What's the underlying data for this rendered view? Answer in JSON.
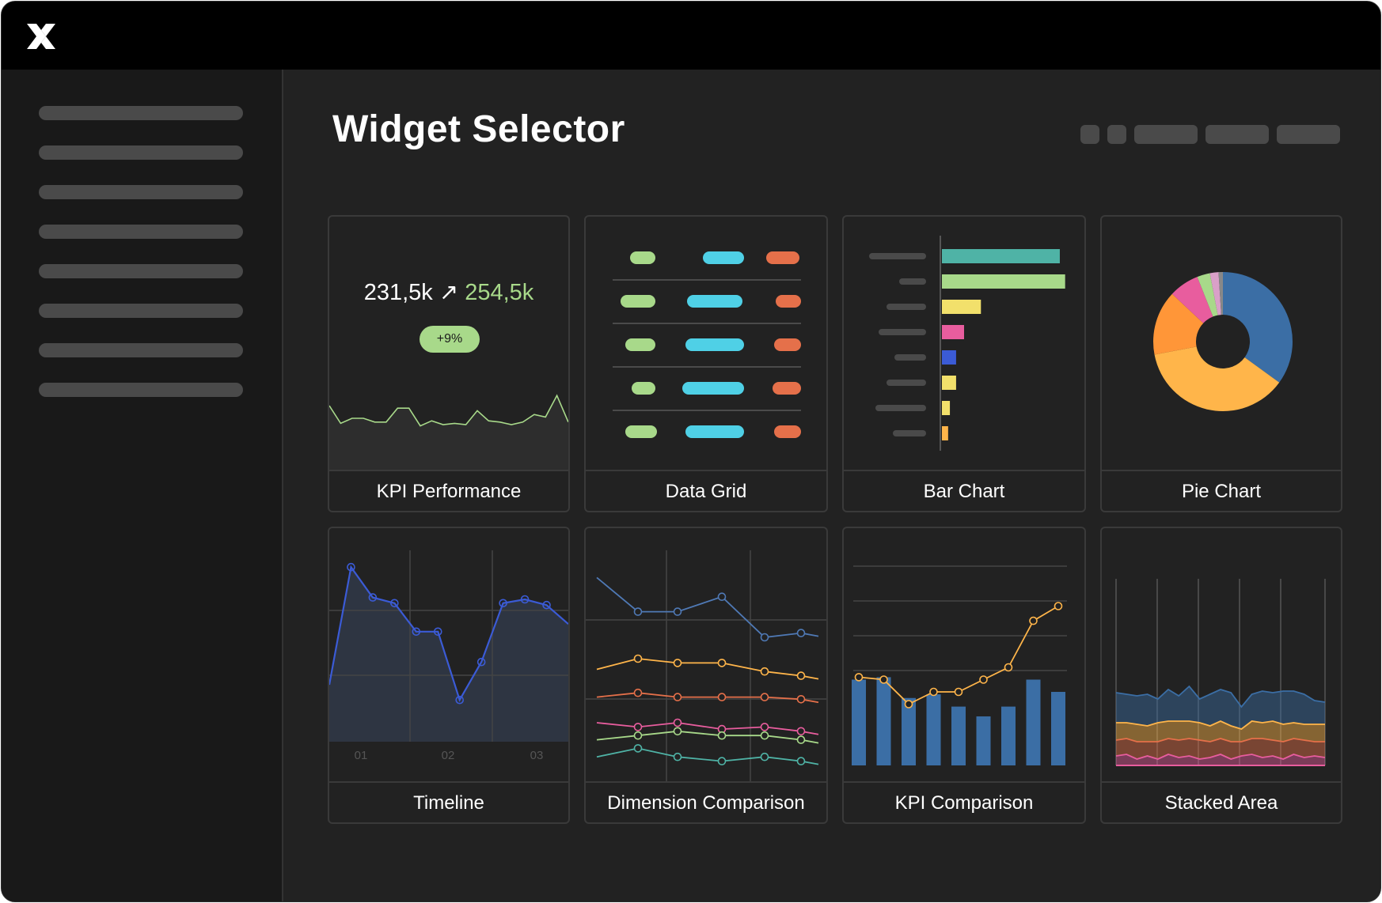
{
  "app": {
    "logo_name": "x-logo-icon"
  },
  "header": {
    "title": "Widget Selector"
  },
  "sidebar": {
    "item_count": 8
  },
  "widgets": {
    "kpi_performance": {
      "label": "KPI Performance",
      "value_from": "231,5k",
      "arrow": "↗",
      "value_to": "254,5k",
      "badge": "+9%"
    },
    "data_grid": {
      "label": "Data Grid"
    },
    "bar_chart": {
      "label": "Bar Chart"
    },
    "pie_chart": {
      "label": "Pie Chart"
    },
    "timeline": {
      "label": "Timeline",
      "ticks": [
        "01",
        "02",
        "03"
      ]
    },
    "dimension_comparison": {
      "label": "Dimension Comparison"
    },
    "kpi_comparison": {
      "label": "KPI Comparison"
    },
    "stacked_area": {
      "label": "Stacked Area"
    }
  },
  "colors": {
    "green": "#a8d98a",
    "cyan": "#4fd0e6",
    "orange": "#e5704a",
    "blue": "#3b5bd6",
    "steel_blue": "#3b6ea5",
    "amber": "#ffb54a",
    "yellow": "#f2e06b",
    "pink": "#e85d9e",
    "teal": "#4fb3a6"
  },
  "chart_data": [
    {
      "type": "line",
      "widget": "kpi_performance",
      "values": [
        60,
        46,
        50,
        50,
        47,
        47,
        58,
        58,
        44,
        48,
        45,
        46,
        45,
        56,
        48,
        47,
        45,
        47,
        53,
        51,
        68,
        47
      ]
    },
    {
      "type": "bar",
      "widget": "bar_chart",
      "orientation": "horizontal",
      "values": [
        133,
        139,
        44,
        25,
        16,
        16,
        9,
        7
      ],
      "colors": [
        "#4fb3a6",
        "#a8d98a",
        "#f2e06b",
        "#e85d9e",
        "#3b5bd6",
        "#f2e06b",
        "#f2e06b",
        "#ffb54a"
      ]
    },
    {
      "type": "pie",
      "widget": "pie_chart",
      "values": [
        35,
        37,
        15,
        7,
        3,
        2,
        1
      ],
      "colors": [
        "#3b6ea5",
        "#ffb54a",
        "#ff9638",
        "#e85d9e",
        "#a8d98a",
        "#d9a0c8",
        "#888888"
      ]
    },
    {
      "type": "area",
      "widget": "timeline",
      "values": [
        30,
        92,
        76,
        73,
        58,
        58,
        22,
        42,
        73,
        75,
        72,
        62
      ],
      "ylim": [
        0,
        100
      ]
    },
    {
      "type": "line",
      "widget": "dimension_comparison",
      "x": [
        0,
        1,
        2,
        3,
        4,
        5
      ],
      "series": [
        {
          "values": [
            88,
            72,
            72,
            79,
            60,
            62
          ],
          "color": "#4f79b5"
        },
        {
          "values": [
            45,
            50,
            48,
            48,
            44,
            42
          ],
          "color": "#ffb54a"
        },
        {
          "values": [
            32,
            34,
            32,
            32,
            32,
            31
          ],
          "color": "#e5704a"
        },
        {
          "values": [
            20,
            18,
            20,
            17,
            18,
            16
          ],
          "color": "#e85d9e"
        },
        {
          "values": [
            12,
            14,
            16,
            14,
            14,
            12
          ],
          "color": "#a8d98a"
        },
        {
          "values": [
            4,
            8,
            4,
            2,
            4,
            2
          ],
          "color": "#4fb3a6"
        }
      ]
    },
    {
      "type": "bar",
      "widget": "kpi_comparison",
      "values": [
        70,
        72,
        55,
        58,
        48,
        40,
        48,
        70,
        60
      ],
      "line": [
        72,
        70,
        50,
        60,
        60,
        70,
        80,
        118,
        130
      ],
      "ylim": [
        0,
        160
      ]
    },
    {
      "type": "area",
      "widget": "stacked_area",
      "series": [
        {
          "values": [
            12,
            14,
            8,
            12,
            8,
            14,
            10,
            12,
            8,
            10,
            14,
            8,
            12,
            14,
            10,
            12,
            8,
            14,
            10,
            12,
            10
          ],
          "color": "#e85d9e"
        },
        {
          "values": [
            20,
            20,
            22,
            18,
            22,
            20,
            22,
            22,
            24,
            20,
            20,
            22,
            18,
            20,
            24,
            20,
            22,
            20,
            22,
            18,
            20
          ],
          "color": "#e5704a"
        },
        {
          "values": [
            22,
            20,
            22,
            20,
            24,
            22,
            24,
            22,
            22,
            20,
            22,
            20,
            16,
            22,
            20,
            24,
            22,
            20,
            20,
            22,
            22
          ],
          "color": "#ffb54a"
        },
        {
          "values": [
            38,
            36,
            36,
            40,
            30,
            40,
            32,
            44,
            30,
            40,
            40,
            42,
            28,
            34,
            40,
            36,
            42,
            40,
            38,
            30,
            28
          ],
          "color": "#3b6ea5"
        }
      ]
    }
  ]
}
